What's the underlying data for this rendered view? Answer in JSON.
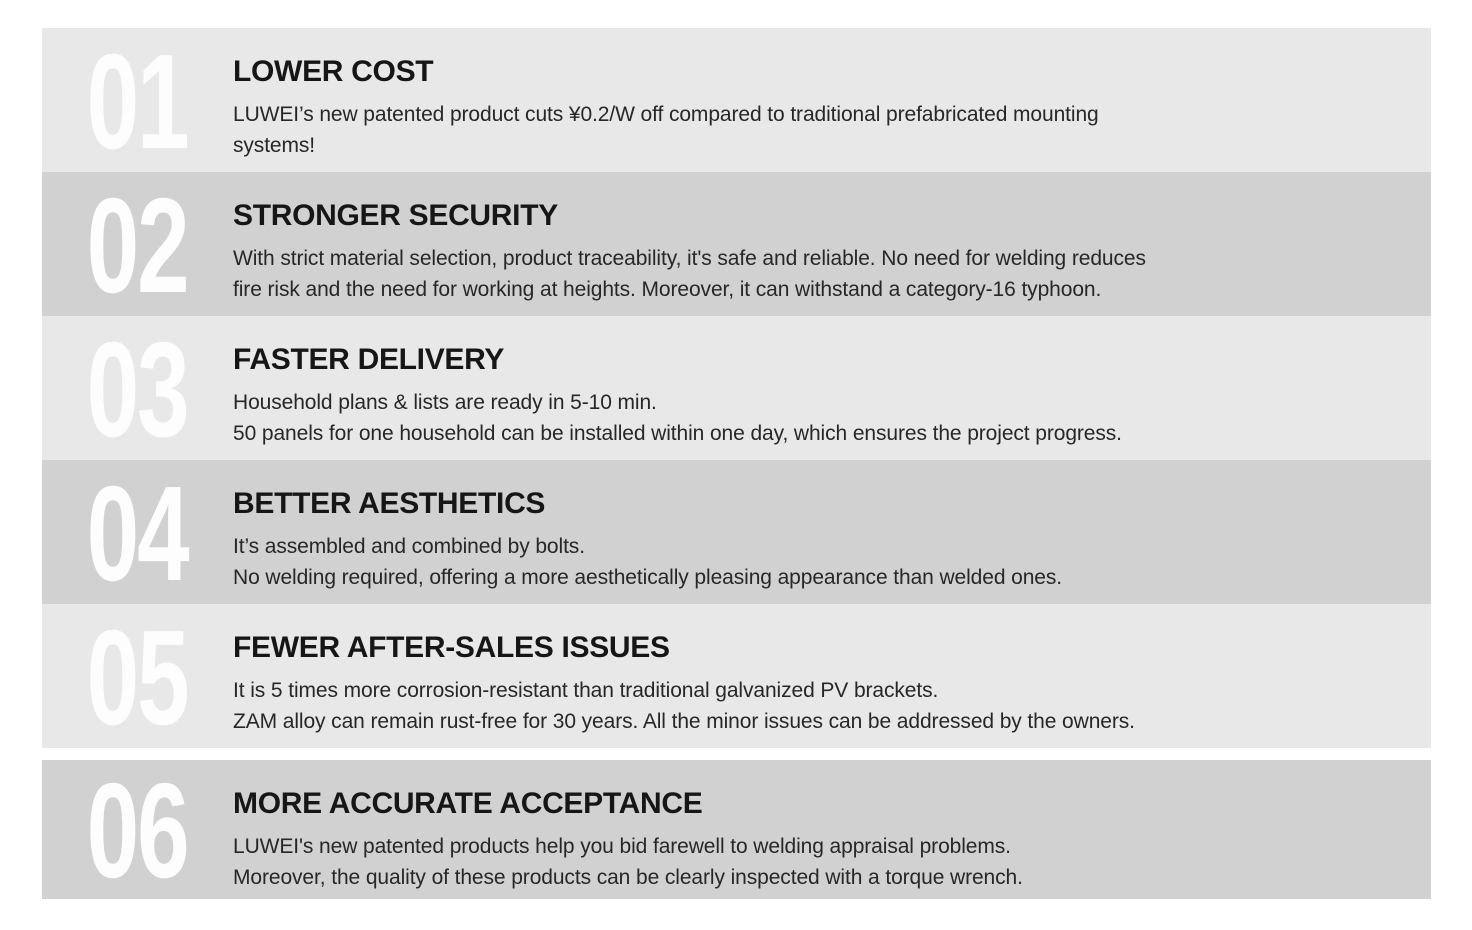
{
  "page": {
    "background": "#ffffff",
    "kind": "benefits-list-slide"
  },
  "list": {
    "stripe_colors": {
      "light": "#e9e8e8",
      "dark": "#d2d1d1"
    },
    "number_color": "#fdfdfd",
    "title_color": "#161616",
    "body_color": "#272727",
    "items": [
      {
        "number": "01",
        "shade": "light",
        "title": "LOWER COST",
        "lines": [
          "LUWEI’s new patented product cuts ¥0.2/W off compared to traditional prefabricated mounting",
          "systems!"
        ]
      },
      {
        "number": "02",
        "shade": "dark",
        "title": "STRONGER SECURITY",
        "lines": [
          "With strict material selection, product traceability, it's safe and reliable. No need for welding reduces",
          "fire risk and the need for working at heights. Moreover, it can withstand a category-16 typhoon."
        ]
      },
      {
        "number": "03",
        "shade": "light",
        "title": "FASTER DELIVERY",
        "lines": [
          "Household plans & lists are ready in 5-10 min.",
          "50 panels for one household can be installed within one day, which ensures the project progress."
        ]
      },
      {
        "number": "04",
        "shade": "dark",
        "title": "BETTER AESTHETICS",
        "lines": [
          "It’s assembled and combined by bolts.",
          "No welding required, offering a more aesthetically pleasing appearance than welded ones."
        ]
      },
      {
        "number": "05",
        "shade": "light",
        "title": "FEWER AFTER-SALES ISSUES",
        "lines": [
          "It is 5 times more corrosion-resistant than traditional galvanized PV brackets.",
          "ZAM alloy can remain rust-free for 30 years. All the minor issues can be addressed by the owners."
        ]
      },
      {
        "number": "06",
        "shade": "dark",
        "title": "MORE ACCURATE ACCEPTANCE",
        "lines": [
          "LUWEI's new patented products help you bid farewell to welding appraisal problems.",
          "Moreover, the quality of these products can be clearly inspected with a torque wrench."
        ]
      }
    ]
  }
}
